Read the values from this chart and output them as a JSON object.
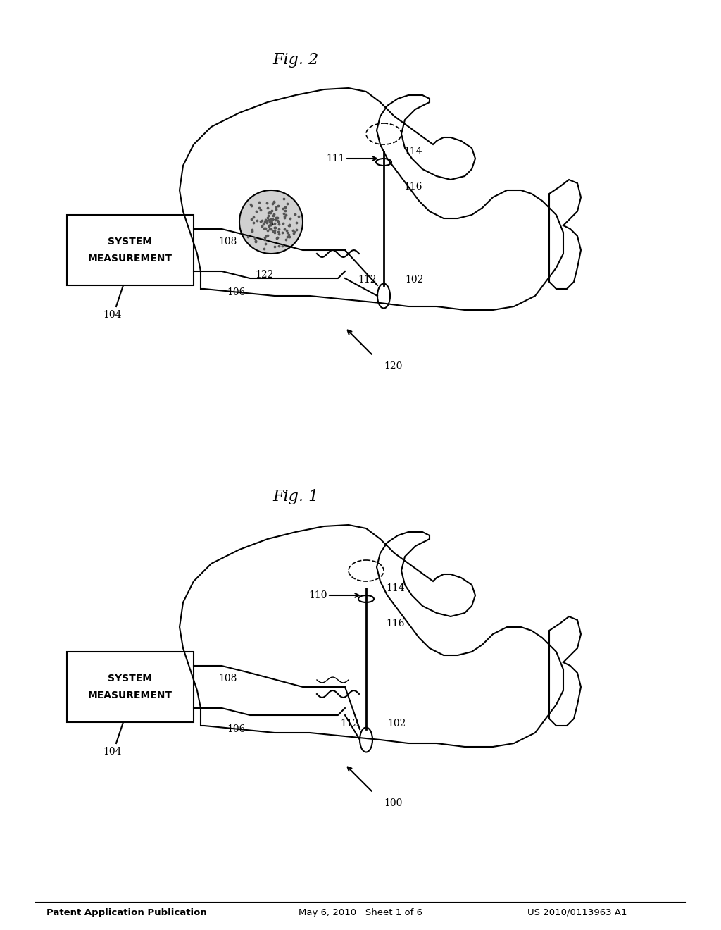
{
  "bg_color": "#ffffff",
  "line_color": "#000000",
  "header_left": "Patent Application Publication",
  "header_mid": "May 6, 2010   Sheet 1 of 6",
  "header_right": "US 2010/0113963 A1",
  "fig1_label": "Fig. 1",
  "fig2_label": "Fig. 2",
  "ref100": "100",
  "ref104": "104",
  "ref106": "106",
  "ref108": "108",
  "ref110": "110",
  "ref111": "111",
  "ref112": "112",
  "ref114": "114",
  "ref116": "116",
  "ref102": "102",
  "ref120": "120",
  "ref122": "122",
  "ms_label_line1": "MEASUREMENT",
  "ms_label_line2": "SYSTEM"
}
